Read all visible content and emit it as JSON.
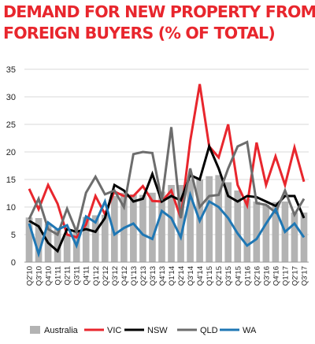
{
  "chart_data": {
    "type": "bar",
    "title_lines": [
      "DEMAND FOR NEW PROPERTY FROM",
      "FOREIGN BUYERS (% OF TOTAL)"
    ],
    "ylim": [
      0,
      35
    ],
    "yticks": [
      0,
      5,
      10,
      15,
      20,
      25,
      30,
      35
    ],
    "grid": "horizontal",
    "legend_position": "bottom",
    "categories": [
      "Q2'10",
      "Q3'10",
      "Q4'10",
      "Q1'11",
      "Q2'11",
      "Q3'11",
      "Q4'11",
      "Q1'12",
      "Q2'12",
      "Q3'12",
      "Q4'12",
      "Q1'13",
      "Q2'13",
      "Q3'13",
      "Q4'13",
      "Q1'14",
      "Q2'14",
      "Q3'14",
      "Q4'14",
      "Q1'15",
      "Q2'15",
      "Q3'15",
      "Q4'15",
      "Q1'16",
      "Q2'16",
      "Q3'16",
      "Q4'16",
      "Q1'17",
      "Q2'17",
      "Q3'17"
    ],
    "tick_labels": [
      "Q2'10",
      "Q3'10",
      "Q4'10",
      "Q1'11",
      "Q2'11",
      "Q3'11",
      "Q4'11",
      "Q1'12",
      "Q2'12",
      "Q3'12",
      "Q4'12",
      "Q1'13",
      "Q2'13",
      "Q3'13",
      "Q4'13",
      "Q1'14",
      "Q2'14",
      "Q3'14",
      "Q4'14",
      "Q1'15",
      "Q2'15",
      "Q3'15",
      "Q4'15",
      "Q1'16",
      "Q2'16",
      "Q3'16",
      "Q4'16",
      "Q1'17",
      "Q2'17",
      "Q3'17"
    ],
    "bar_series": {
      "name": "Australia",
      "color": "#b3b3b3",
      "values": [
        8.1,
        8.0,
        6.9,
        6.0,
        4.8,
        5.8,
        8.2,
        8.5,
        8.6,
        12.0,
        12.6,
        12.3,
        12.2,
        12.6,
        12.8,
        14.0,
        14.0,
        15.0,
        15.0,
        15.6,
        15.8,
        14.5,
        13.0,
        11.5,
        11.0,
        10.4,
        10.9,
        11.0,
        9.0,
        9.0
      ]
    },
    "line_series": [
      {
        "name": "VIC",
        "color": "#e8262d",
        "values": [
          13.3,
          9.6,
          14.0,
          10.6,
          5.0,
          4.5,
          6.8,
          12.0,
          8.7,
          12.8,
          12.0,
          12.0,
          13.8,
          11.1,
          11.0,
          13.0,
          8.0,
          22.0,
          32.3,
          21.0,
          19.0,
          25.0,
          14.0,
          10.3,
          21.7,
          14.0,
          19.2,
          14.0,
          20.8,
          14.6
        ]
      },
      {
        "name": "NSW",
        "color": "#000000",
        "values": [
          7.5,
          6.5,
          3.5,
          2.0,
          6.0,
          5.5,
          6.0,
          5.5,
          8.0,
          14.0,
          13.0,
          11.0,
          11.5,
          16.0,
          11.0,
          12.0,
          11.2,
          15.8,
          15.0,
          21.0,
          17.0,
          12.0,
          11.0,
          12.0,
          11.8,
          11.0,
          10.2,
          12.0,
          12.0,
          8.0
        ]
      },
      {
        "name": "QLD",
        "color": "#6d6d6d",
        "values": [
          7.8,
          11.5,
          6.0,
          5.0,
          9.7,
          5.5,
          12.6,
          15.5,
          12.3,
          13.0,
          10.0,
          19.6,
          20.0,
          19.8,
          11.2,
          24.5,
          8.0,
          17.0,
          10.0,
          12.0,
          12.2,
          17.0,
          21.0,
          21.8,
          10.7,
          10.4,
          9.0,
          13.0,
          8.6,
          11.5
        ]
      },
      {
        "name": "WA",
        "color": "#1f77b4",
        "values": [
          7.0,
          1.5,
          7.2,
          5.9,
          6.7,
          3.0,
          8.3,
          7.2,
          11.0,
          5.0,
          6.2,
          7.0,
          5.0,
          4.2,
          9.3,
          8.0,
          4.5,
          12.2,
          7.5,
          11.0,
          10.0,
          8.0,
          5.2,
          3.0,
          4.2,
          7.0,
          9.6,
          5.5,
          7.0,
          4.5
        ]
      }
    ]
  },
  "legend": {
    "items": [
      {
        "label": "Australia",
        "kind": "bar",
        "color": "#b3b3b3"
      },
      {
        "label": "VIC",
        "kind": "line",
        "color": "#e8262d"
      },
      {
        "label": "NSW",
        "kind": "line",
        "color": "#000000"
      },
      {
        "label": "QLD",
        "kind": "line",
        "color": "#6d6d6d"
      },
      {
        "label": "WA",
        "kind": "line",
        "color": "#1f77b4"
      }
    ]
  }
}
